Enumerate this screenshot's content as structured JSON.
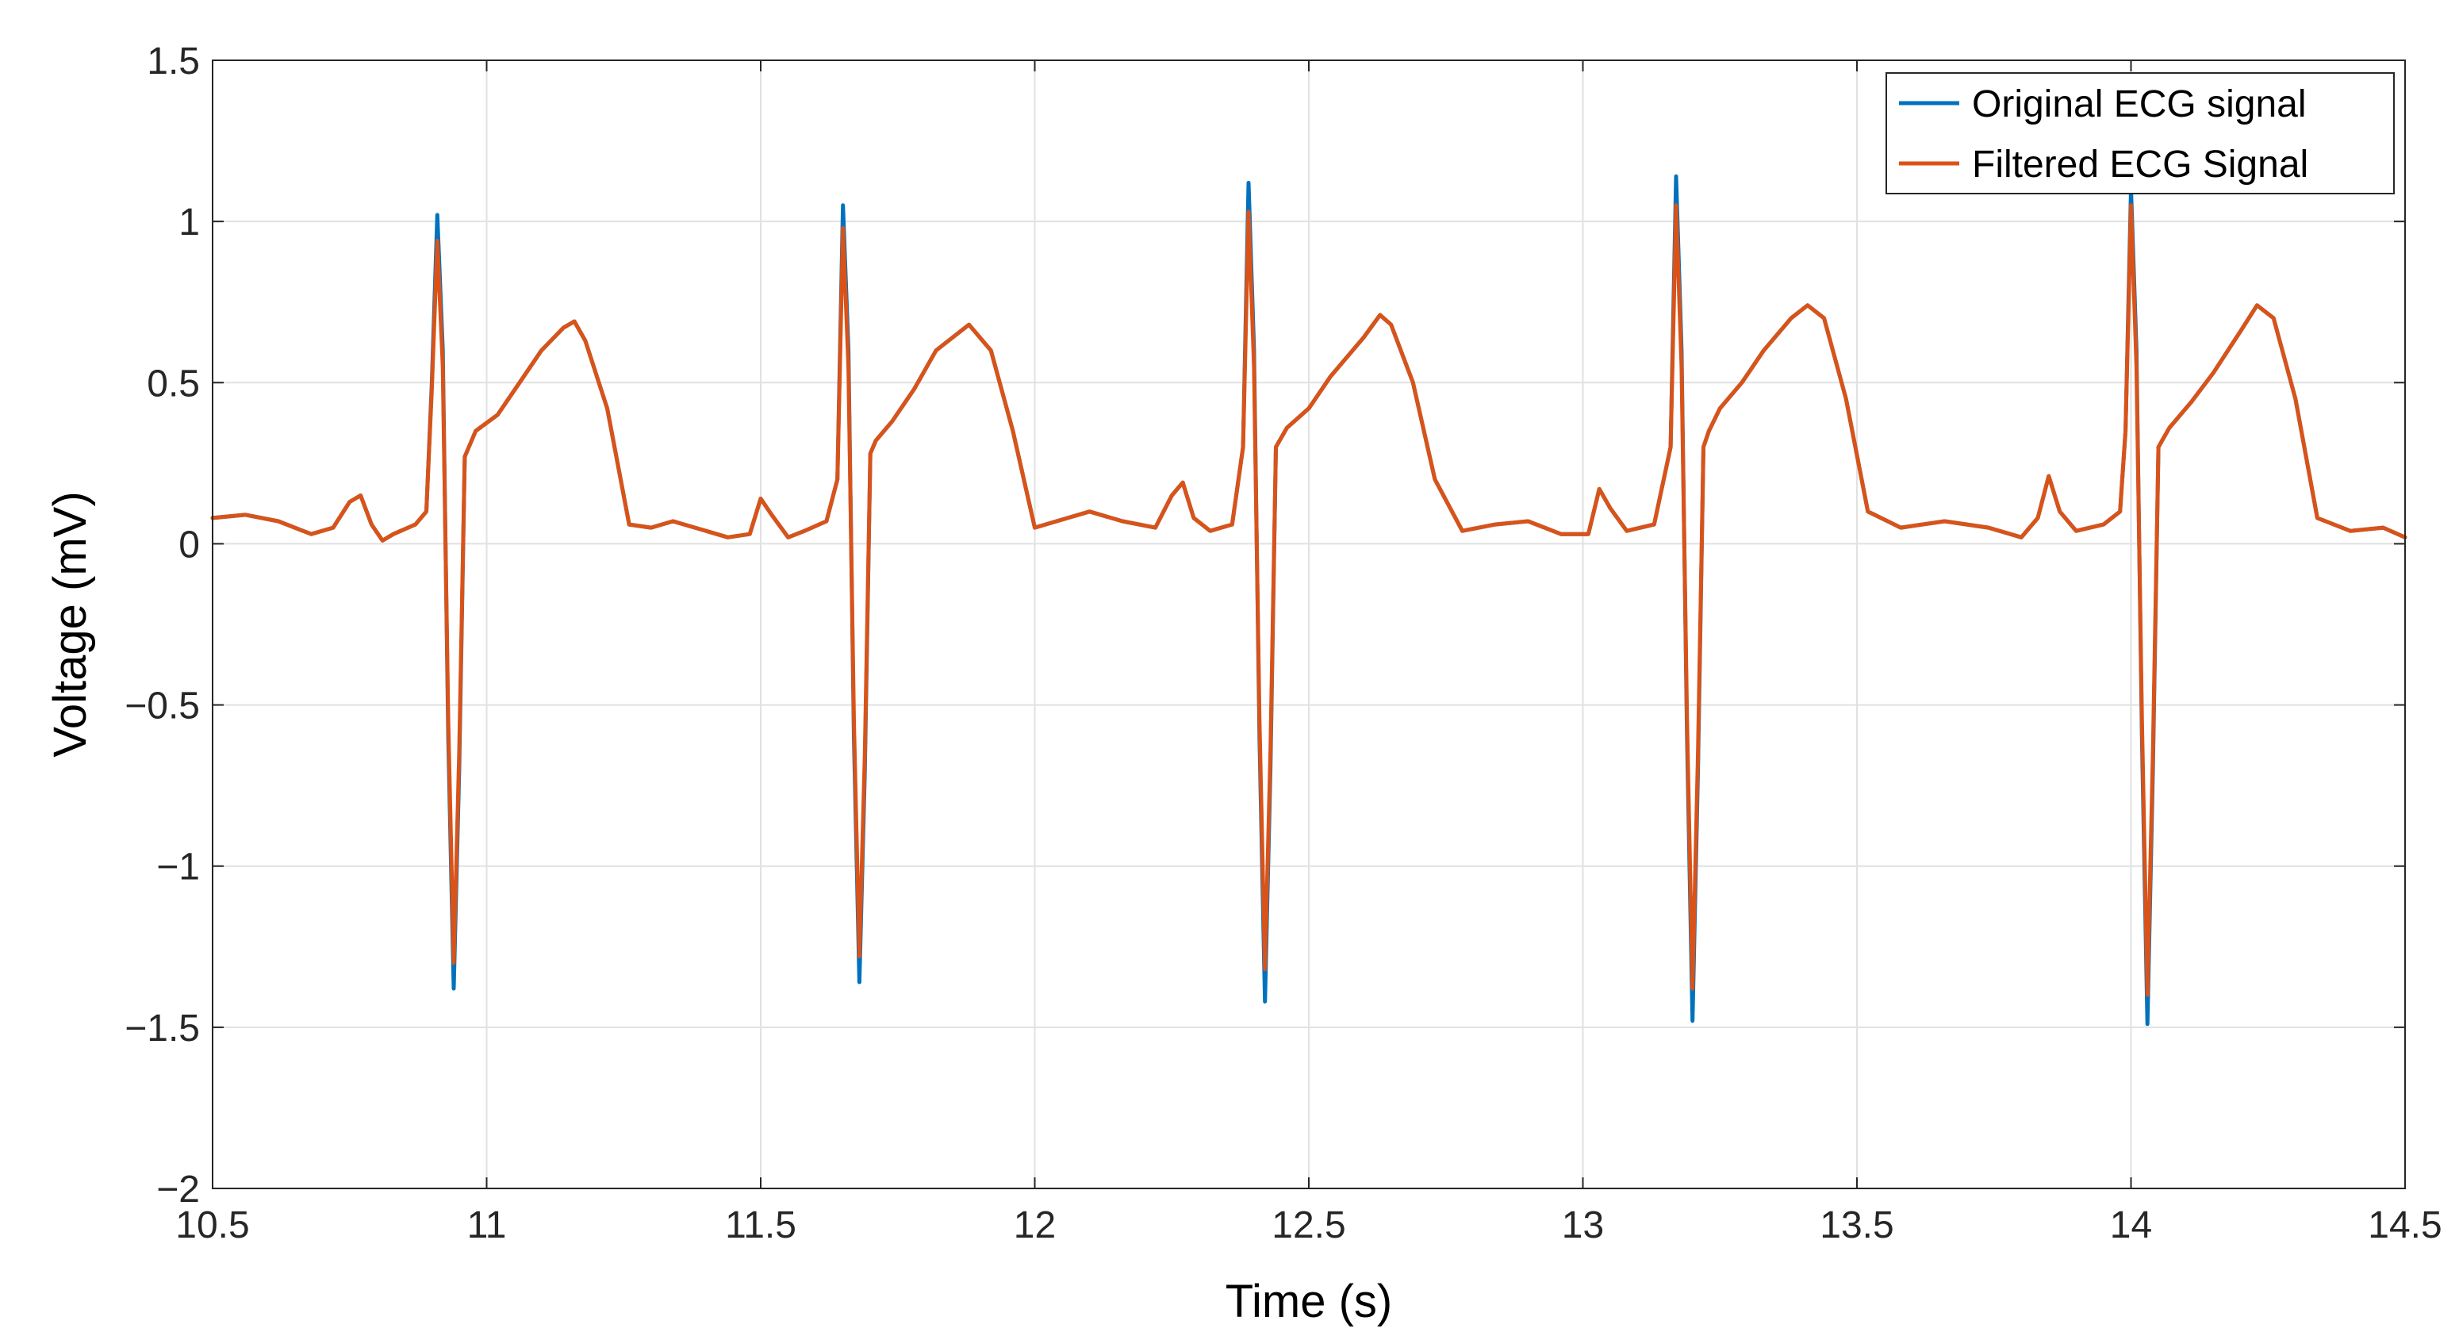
{
  "chart_data": {
    "type": "line",
    "title": "",
    "xlabel": "Time (s)",
    "ylabel": "Voltage (mV)",
    "xlim": [
      10.5,
      14.5
    ],
    "ylim": [
      -2,
      1.5
    ],
    "x_ticks": [
      "10.5",
      "11",
      "11.5",
      "12",
      "12.5",
      "13",
      "13.5",
      "14",
      "14.5"
    ],
    "y_ticks": [
      "−2",
      "−1.5",
      "−1",
      "−0.5",
      "0",
      "0.5",
      "1",
      "1.5"
    ],
    "grid": true,
    "legend_position": "top-right",
    "series": [
      {
        "name": "Original ECG signal",
        "color": "#0072BD",
        "x": [
          10.5,
          10.56,
          10.62,
          10.68,
          10.72,
          10.75,
          10.77,
          10.79,
          10.81,
          10.83,
          10.87,
          10.89,
          10.9,
          10.91,
          10.92,
          10.93,
          10.94,
          10.95,
          10.96,
          10.98,
          11.02,
          11.06,
          11.1,
          11.14,
          11.16,
          11.18,
          11.22,
          11.26,
          11.3,
          11.34,
          11.38,
          11.44,
          11.48,
          11.5,
          11.52,
          11.55,
          11.58,
          11.62,
          11.64,
          11.65,
          11.66,
          11.67,
          11.68,
          11.69,
          11.7,
          11.71,
          11.74,
          11.78,
          11.82,
          11.88,
          11.92,
          11.96,
          12.0,
          12.06,
          12.1,
          12.16,
          12.22,
          12.25,
          12.27,
          12.29,
          12.32,
          12.36,
          12.38,
          12.39,
          12.4,
          12.41,
          12.42,
          12.43,
          12.44,
          12.46,
          12.5,
          12.54,
          12.6,
          12.63,
          12.65,
          12.69,
          12.73,
          12.78,
          12.84,
          12.9,
          12.96,
          13.01,
          13.03,
          13.05,
          13.08,
          13.13,
          13.16,
          13.17,
          13.18,
          13.19,
          13.2,
          13.21,
          13.22,
          13.23,
          13.25,
          13.29,
          13.33,
          13.38,
          13.41,
          13.44,
          13.48,
          13.52,
          13.58,
          13.66,
          13.74,
          13.8,
          13.83,
          13.85,
          13.87,
          13.9,
          13.95,
          13.98,
          13.99,
          14.0,
          14.01,
          14.02,
          14.03,
          14.04,
          14.05,
          14.07,
          14.11,
          14.15,
          14.2,
          14.23,
          14.26,
          14.3,
          14.34,
          14.4,
          14.46,
          14.5
        ],
        "y": [
          0.08,
          0.09,
          0.07,
          0.03,
          0.05,
          0.13,
          0.15,
          0.06,
          0.01,
          0.03,
          0.06,
          0.1,
          0.5,
          1.02,
          0.6,
          -0.6,
          -1.38,
          -0.7,
          0.27,
          0.35,
          0.4,
          0.5,
          0.6,
          0.67,
          0.69,
          0.63,
          0.42,
          0.06,
          0.05,
          0.07,
          0.05,
          0.02,
          0.03,
          0.14,
          0.09,
          0.02,
          0.04,
          0.07,
          0.2,
          1.05,
          0.6,
          -0.6,
          -1.36,
          -0.7,
          0.28,
          0.32,
          0.38,
          0.48,
          0.6,
          0.68,
          0.6,
          0.35,
          0.05,
          0.08,
          0.1,
          0.07,
          0.05,
          0.15,
          0.19,
          0.08,
          0.04,
          0.06,
          0.3,
          1.12,
          0.6,
          -0.6,
          -1.42,
          -0.7,
          0.3,
          0.36,
          0.42,
          0.52,
          0.64,
          0.71,
          0.68,
          0.5,
          0.2,
          0.04,
          0.06,
          0.07,
          0.03,
          0.03,
          0.17,
          0.11,
          0.04,
          0.06,
          0.3,
          1.14,
          0.6,
          -0.6,
          -1.48,
          -0.7,
          0.3,
          0.35,
          0.42,
          0.5,
          0.6,
          0.7,
          0.74,
          0.7,
          0.45,
          0.1,
          0.05,
          0.07,
          0.05,
          0.02,
          0.08,
          0.21,
          0.1,
          0.04,
          0.06,
          0.1,
          0.35,
          1.1,
          0.6,
          -0.6,
          -1.49,
          -0.7,
          0.3,
          0.36,
          0.44,
          0.53,
          0.66,
          0.74,
          0.7,
          0.45,
          0.08,
          0.04,
          0.05,
          0.02
        ]
      },
      {
        "name": "Filtered ECG Signal",
        "color": "#D95319",
        "x": [
          10.5,
          10.56,
          10.62,
          10.68,
          10.72,
          10.75,
          10.77,
          10.79,
          10.81,
          10.83,
          10.87,
          10.89,
          10.9,
          10.91,
          10.92,
          10.93,
          10.94,
          10.95,
          10.96,
          10.98,
          11.02,
          11.06,
          11.1,
          11.14,
          11.16,
          11.18,
          11.22,
          11.26,
          11.3,
          11.34,
          11.38,
          11.44,
          11.48,
          11.5,
          11.52,
          11.55,
          11.58,
          11.62,
          11.64,
          11.65,
          11.66,
          11.67,
          11.68,
          11.69,
          11.7,
          11.71,
          11.74,
          11.78,
          11.82,
          11.88,
          11.92,
          11.96,
          12.0,
          12.06,
          12.1,
          12.16,
          12.22,
          12.25,
          12.27,
          12.29,
          12.32,
          12.36,
          12.38,
          12.39,
          12.4,
          12.41,
          12.42,
          12.43,
          12.44,
          12.46,
          12.5,
          12.54,
          12.6,
          12.63,
          12.65,
          12.69,
          12.73,
          12.78,
          12.84,
          12.9,
          12.96,
          13.01,
          13.03,
          13.05,
          13.08,
          13.13,
          13.16,
          13.17,
          13.18,
          13.19,
          13.2,
          13.21,
          13.22,
          13.23,
          13.25,
          13.29,
          13.33,
          13.38,
          13.41,
          13.44,
          13.48,
          13.52,
          13.58,
          13.66,
          13.74,
          13.8,
          13.83,
          13.85,
          13.87,
          13.9,
          13.95,
          13.98,
          13.99,
          14.0,
          14.01,
          14.02,
          14.03,
          14.04,
          14.05,
          14.07,
          14.11,
          14.15,
          14.2,
          14.23,
          14.26,
          14.3,
          14.34,
          14.4,
          14.46,
          14.5
        ],
        "y": [
          0.08,
          0.09,
          0.07,
          0.03,
          0.05,
          0.13,
          0.15,
          0.06,
          0.01,
          0.03,
          0.06,
          0.1,
          0.48,
          0.94,
          0.55,
          -0.55,
          -1.3,
          -0.65,
          0.27,
          0.35,
          0.4,
          0.5,
          0.6,
          0.67,
          0.69,
          0.63,
          0.42,
          0.06,
          0.05,
          0.07,
          0.05,
          0.02,
          0.03,
          0.14,
          0.09,
          0.02,
          0.04,
          0.07,
          0.2,
          0.98,
          0.55,
          -0.55,
          -1.28,
          -0.65,
          0.28,
          0.32,
          0.38,
          0.48,
          0.6,
          0.68,
          0.6,
          0.35,
          0.05,
          0.08,
          0.1,
          0.07,
          0.05,
          0.15,
          0.19,
          0.08,
          0.04,
          0.06,
          0.3,
          1.03,
          0.55,
          -0.55,
          -1.32,
          -0.65,
          0.3,
          0.36,
          0.42,
          0.52,
          0.64,
          0.71,
          0.68,
          0.5,
          0.2,
          0.04,
          0.06,
          0.07,
          0.03,
          0.03,
          0.17,
          0.11,
          0.04,
          0.06,
          0.3,
          1.05,
          0.55,
          -0.55,
          -1.38,
          -0.65,
          0.3,
          0.35,
          0.42,
          0.5,
          0.6,
          0.7,
          0.74,
          0.7,
          0.45,
          0.1,
          0.05,
          0.07,
          0.05,
          0.02,
          0.08,
          0.21,
          0.1,
          0.04,
          0.06,
          0.1,
          0.35,
          1.05,
          0.55,
          -0.55,
          -1.4,
          -0.65,
          0.3,
          0.36,
          0.44,
          0.53,
          0.66,
          0.74,
          0.7,
          0.45,
          0.08,
          0.04,
          0.05,
          0.02
        ]
      }
    ]
  }
}
